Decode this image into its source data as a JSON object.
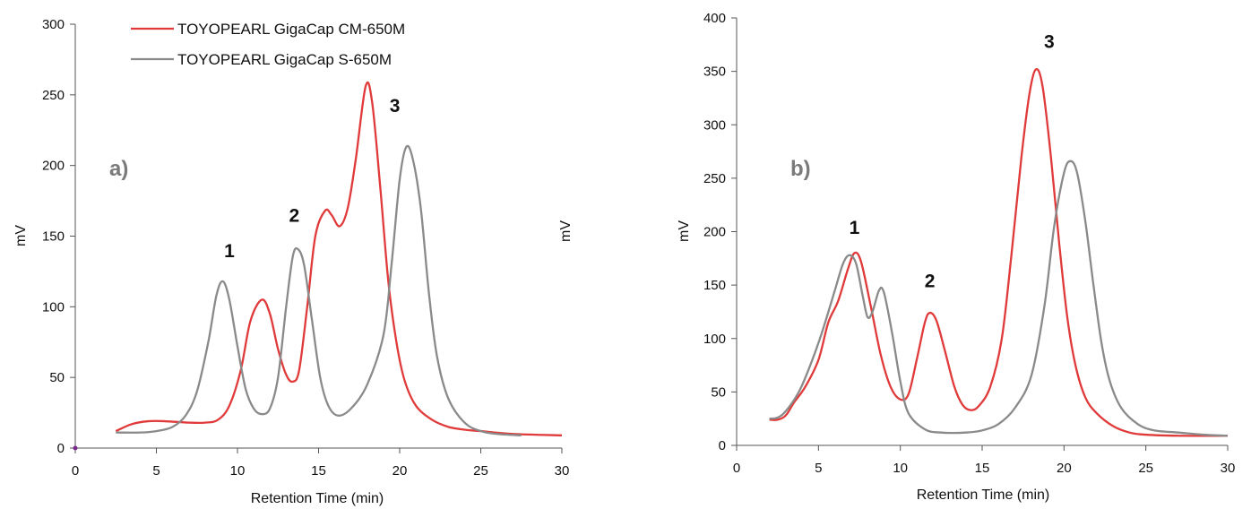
{
  "colors": {
    "cm_series": "#e03a3a",
    "s_series": "#8a8a8a",
    "axis": "#555555",
    "panel_letter": "#7a7a7a"
  },
  "legend": {
    "series_cm": "TOYOPEARL GigaCap CM-650M",
    "series_s": "TOYOPEARL GigaCap S-650M"
  },
  "chart_data": [
    {
      "type": "line",
      "panel_label": "a)",
      "xlabel": "Retention Time (min)",
      "ylabel": "mV",
      "ylabel_right": "mV",
      "xlim": [
        0,
        30
      ],
      "ylim": [
        0,
        300
      ],
      "xticks": [
        0,
        5,
        10,
        15,
        20,
        25,
        30
      ],
      "yticks": [
        0,
        50,
        100,
        150,
        200,
        250,
        300
      ],
      "grid": false,
      "legend_position": "top-left",
      "series": [
        {
          "name": "TOYOPEARL GigaCap CM-650M",
          "color": "#e03a3a",
          "points": [
            [
              2.5,
              12
            ],
            [
              3.5,
              17
            ],
            [
              4.5,
              19
            ],
            [
              5.5,
              19
            ],
            [
              7,
              18
            ],
            [
              8,
              18
            ],
            [
              8.8,
              20
            ],
            [
              9.5,
              30
            ],
            [
              10.2,
              55
            ],
            [
              10.8,
              90
            ],
            [
              11.5,
              105
            ],
            [
              12,
              95
            ],
            [
              12.5,
              70
            ],
            [
              13,
              52
            ],
            [
              13.4,
              47
            ],
            [
              13.8,
              55
            ],
            [
              14.3,
              100
            ],
            [
              14.8,
              150
            ],
            [
              15.4,
              168
            ],
            [
              15.8,
              165
            ],
            [
              16.3,
              157
            ],
            [
              16.8,
              170
            ],
            [
              17.3,
              205
            ],
            [
              17.9,
              256
            ],
            [
              18.3,
              245
            ],
            [
              18.8,
              185
            ],
            [
              19.3,
              118
            ],
            [
              19.8,
              75
            ],
            [
              20.3,
              48
            ],
            [
              21,
              30
            ],
            [
              22,
              20
            ],
            [
              23,
              15
            ],
            [
              24,
              13
            ],
            [
              25,
              12
            ],
            [
              27,
              10
            ],
            [
              30,
              9
            ]
          ]
        },
        {
          "name": "TOYOPEARL GigaCap S-650M",
          "color": "#8a8a8a",
          "points": [
            [
              2.5,
              11
            ],
            [
              4,
              11
            ],
            [
              5,
              12
            ],
            [
              6,
              15
            ],
            [
              6.8,
              23
            ],
            [
              7.5,
              40
            ],
            [
              8.2,
              75
            ],
            [
              8.7,
              108
            ],
            [
              9.1,
              118
            ],
            [
              9.5,
              105
            ],
            [
              10,
              72
            ],
            [
              10.5,
              42
            ],
            [
              11,
              28
            ],
            [
              11.5,
              24
            ],
            [
              12,
              28
            ],
            [
              12.5,
              50
            ],
            [
              13,
              100
            ],
            [
              13.4,
              135
            ],
            [
              13.7,
              141
            ],
            [
              14.1,
              130
            ],
            [
              14.6,
              90
            ],
            [
              15.1,
              50
            ],
            [
              15.6,
              30
            ],
            [
              16.2,
              23
            ],
            [
              17,
              28
            ],
            [
              18,
              45
            ],
            [
              19,
              80
            ],
            [
              19.5,
              130
            ],
            [
              20,
              190
            ],
            [
              20.4,
              213
            ],
            [
              20.8,
              205
            ],
            [
              21.3,
              170
            ],
            [
              21.8,
              110
            ],
            [
              22.3,
              65
            ],
            [
              23,
              35
            ],
            [
              24,
              18
            ],
            [
              25,
              12
            ],
            [
              26,
              10
            ],
            [
              27.5,
              9
            ]
          ]
        }
      ],
      "annotations": [
        {
          "text": "1",
          "x": 9.5,
          "y": 135
        },
        {
          "text": "2",
          "x": 13.5,
          "y": 160
        },
        {
          "text": "3",
          "x": 19.7,
          "y": 238
        }
      ]
    },
    {
      "type": "line",
      "panel_label": "b)",
      "xlabel": "Retention Time (min)",
      "ylabel": "mV",
      "xlim": [
        0,
        30
      ],
      "ylim": [
        0,
        400
      ],
      "xticks": [
        0,
        5,
        10,
        15,
        20,
        25,
        30
      ],
      "yticks": [
        0,
        50,
        100,
        150,
        200,
        250,
        300,
        350,
        400
      ],
      "grid": false,
      "series": [
        {
          "name": "TOYOPEARL GigaCap CM-650M",
          "color": "#e03a3a",
          "points": [
            [
              2,
              24
            ],
            [
              2.5,
              24
            ],
            [
              3,
              28
            ],
            [
              3.5,
              40
            ],
            [
              4.2,
              55
            ],
            [
              5,
              80
            ],
            [
              5.6,
              115
            ],
            [
              6.2,
              135
            ],
            [
              6.8,
              165
            ],
            [
              7.2,
              180
            ],
            [
              7.6,
              172
            ],
            [
              8.2,
              130
            ],
            [
              8.8,
              85
            ],
            [
              9.4,
              55
            ],
            [
              10,
              43
            ],
            [
              10.5,
              48
            ],
            [
              11,
              80
            ],
            [
              11.5,
              115
            ],
            [
              11.8,
              124
            ],
            [
              12.2,
              117
            ],
            [
              12.7,
              90
            ],
            [
              13.3,
              55
            ],
            [
              13.8,
              38
            ],
            [
              14.3,
              33
            ],
            [
              14.8,
              37
            ],
            [
              15.5,
              55
            ],
            [
              16.2,
              100
            ],
            [
              16.8,
              180
            ],
            [
              17.4,
              270
            ],
            [
              17.9,
              330
            ],
            [
              18.3,
              352
            ],
            [
              18.7,
              335
            ],
            [
              19.2,
              270
            ],
            [
              19.7,
              190
            ],
            [
              20.2,
              120
            ],
            [
              20.7,
              75
            ],
            [
              21.3,
              45
            ],
            [
              22,
              30
            ],
            [
              23,
              18
            ],
            [
              24,
              12
            ],
            [
              25,
              10
            ],
            [
              27,
              9
            ],
            [
              30,
              9
            ]
          ]
        },
        {
          "name": "TOYOPEARL GigaCap S-650M",
          "color": "#8a8a8a",
          "points": [
            [
              2,
              25
            ],
            [
              2.5,
              26
            ],
            [
              3,
              32
            ],
            [
              3.8,
              50
            ],
            [
              4.5,
              75
            ],
            [
              5.2,
              105
            ],
            [
              6,
              145
            ],
            [
              6.5,
              170
            ],
            [
              6.9,
              178
            ],
            [
              7.3,
              170
            ],
            [
              7.7,
              140
            ],
            [
              8,
              120
            ],
            [
              8.3,
              125
            ],
            [
              8.7,
              145
            ],
            [
              9,
              143
            ],
            [
              9.5,
              105
            ],
            [
              10,
              60
            ],
            [
              10.5,
              30
            ],
            [
              11.5,
              15
            ],
            [
              12.5,
              12
            ],
            [
              14,
              12
            ],
            [
              15,
              14
            ],
            [
              16,
              20
            ],
            [
              17,
              35
            ],
            [
              18,
              65
            ],
            [
              18.8,
              130
            ],
            [
              19.4,
              205
            ],
            [
              20,
              255
            ],
            [
              20.4,
              266
            ],
            [
              20.8,
              255
            ],
            [
              21.3,
              210
            ],
            [
              21.8,
              150
            ],
            [
              22.3,
              95
            ],
            [
              22.8,
              60
            ],
            [
              23.5,
              35
            ],
            [
              24.5,
              20
            ],
            [
              25.5,
              14
            ],
            [
              27,
              12
            ],
            [
              28.5,
              10
            ],
            [
              30,
              9
            ]
          ]
        }
      ],
      "annotations": [
        {
          "text": "1",
          "x": 7.2,
          "y": 198
        },
        {
          "text": "2",
          "x": 11.8,
          "y": 148
        },
        {
          "text": "3",
          "x": 19.1,
          "y": 372
        }
      ]
    }
  ]
}
